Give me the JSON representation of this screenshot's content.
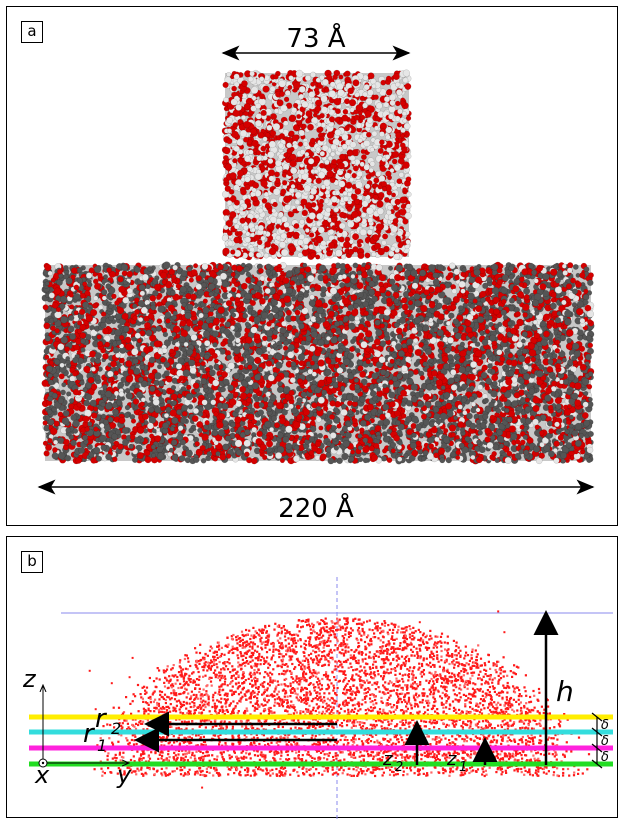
{
  "panel_a": {
    "label": "a",
    "top_width": "73 Å",
    "bottom_width": "220 Å",
    "colors": {
      "oxygen": "#d40000",
      "hydrogen": "#e6e6e6",
      "carbon": "#555555"
    }
  },
  "panel_b": {
    "label": "b",
    "axis_z": "z",
    "axis_x": "x",
    "axis_y": "y",
    "r1": "r",
    "r1_sub": "1",
    "r2": "r",
    "r2_sub": "2",
    "z1": "z",
    "z1_sub": "1",
    "z2": "z",
    "z2_sub": "2",
    "height": "h",
    "delta": "δ",
    "colors": {
      "droplet": "#ff1a1a",
      "yellow": "#ffee00",
      "cyan": "#33dddd",
      "magenta": "#ff22dd",
      "green": "#22dd22",
      "guide": "#8888ee"
    }
  }
}
